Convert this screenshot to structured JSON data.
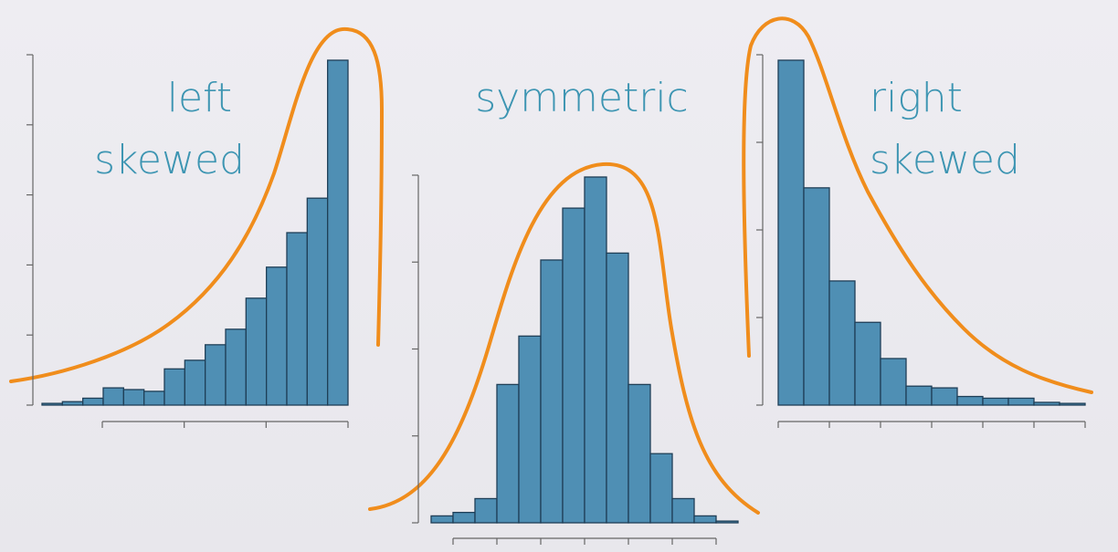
{
  "colors": {
    "bar_fill": "#4f8fb4",
    "bar_stroke": "#1f3f57",
    "curve": "#f08d1c",
    "label": "#3d95b2",
    "axis": "#666666"
  },
  "chart_data": [
    {
      "type": "bar",
      "label_lines": [
        "left",
        "skewed"
      ],
      "values": [
        0.5,
        1.0,
        2.0,
        5.0,
        4.5,
        4.0,
        10.5,
        13,
        17.5,
        22,
        31,
        40,
        50,
        60,
        100
      ],
      "ylim": [
        0,
        100
      ],
      "y_ticks": 6,
      "x_ticks": 4,
      "curve": "left-skewed"
    },
    {
      "type": "bar",
      "label_lines": [
        "symmetric"
      ],
      "values": [
        2,
        3,
        7,
        40,
        54,
        76,
        91,
        100,
        78,
        40,
        20,
        7,
        2,
        0.5
      ],
      "ylim": [
        0,
        100
      ],
      "y_ticks": 5,
      "x_ticks": 7,
      "curve": "symmetric"
    },
    {
      "type": "bar",
      "label_lines": [
        "right",
        "skewed"
      ],
      "values": [
        100,
        63,
        36,
        24,
        13.5,
        5.5,
        5.0,
        2.5,
        2.0,
        2.0,
        0.8,
        0.5
      ],
      "ylim": [
        0,
        100
      ],
      "y_ticks": 5,
      "x_ticks": 7,
      "curve": "right-skewed"
    }
  ]
}
